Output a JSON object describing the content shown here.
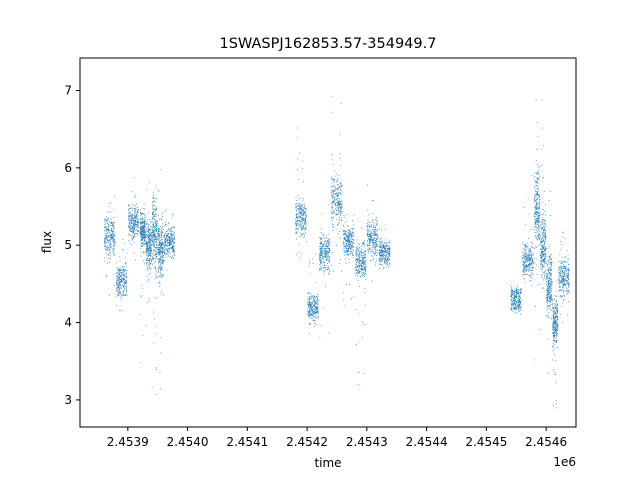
{
  "chart_data": {
    "type": "scatter",
    "title": "1SWASPJ162853.57-354949.7",
    "xlabel": "time",
    "ylabel": "flux",
    "x_offset_label": "1e6",
    "x_scale": 1000000,
    "xlim": [
      2.45382,
      2.45465
    ],
    "ylim": [
      2.65,
      7.42
    ],
    "xticks": [
      2.4539,
      2.454,
      2.4541,
      2.4542,
      2.4543,
      2.4544,
      2.4545,
      2.4546
    ],
    "xtick_labels": [
      "2.4539",
      "2.4540",
      "2.4541",
      "2.4542",
      "2.4543",
      "2.4544",
      "2.4545",
      "2.4546"
    ],
    "yticks": [
      3,
      4,
      5,
      6,
      7
    ],
    "ytick_labels": [
      "3",
      "4",
      "5",
      "6",
      "7"
    ],
    "grid": false,
    "marker_color": "#1f77b4",
    "segments": [
      {
        "x": [
          2.45386,
          2.45388,
          2.4539,
          2.45392,
          2.45393,
          2.45394,
          2.45395,
          2.45396
        ],
        "y": [
          5.1,
          4.55,
          5.3,
          5.2,
          5.0,
          5.15,
          4.95,
          5.05
        ],
        "y_min": [
          4.3,
          4.1,
          4.8,
          3.3,
          3.6,
          2.9,
          3.1,
          4.6
        ],
        "y_max": [
          5.7,
          5.1,
          5.9,
          5.8,
          5.9,
          6.5,
          6.0,
          5.5
        ]
      },
      {
        "x": [
          2.45418,
          2.4542,
          2.45422,
          2.45424,
          2.45426,
          2.45428,
          2.4543,
          2.45432
        ],
        "y": [
          5.35,
          4.2,
          4.9,
          5.6,
          5.05,
          4.8,
          5.1,
          4.9
        ],
        "y_min": [
          4.8,
          3.8,
          3.2,
          4.6,
          4.2,
          3.2,
          4.5,
          4.6
        ],
        "y_max": [
          6.7,
          5.0,
          5.6,
          7.2,
          5.5,
          5.3,
          5.9,
          5.3
        ]
      },
      {
        "x": [
          2.45454,
          2.45456,
          2.45458,
          2.45459,
          2.4546,
          2.45461,
          2.45462
        ],
        "y": [
          4.3,
          4.8,
          5.5,
          5.0,
          4.5,
          4.0,
          4.6
        ],
        "y_min": [
          4.1,
          4.3,
          3.4,
          3.8,
          3.3,
          2.9,
          4.0
        ],
        "y_max": [
          4.5,
          6.3,
          7.1,
          6.9,
          5.8,
          4.8,
          5.3
        ]
      }
    ]
  }
}
